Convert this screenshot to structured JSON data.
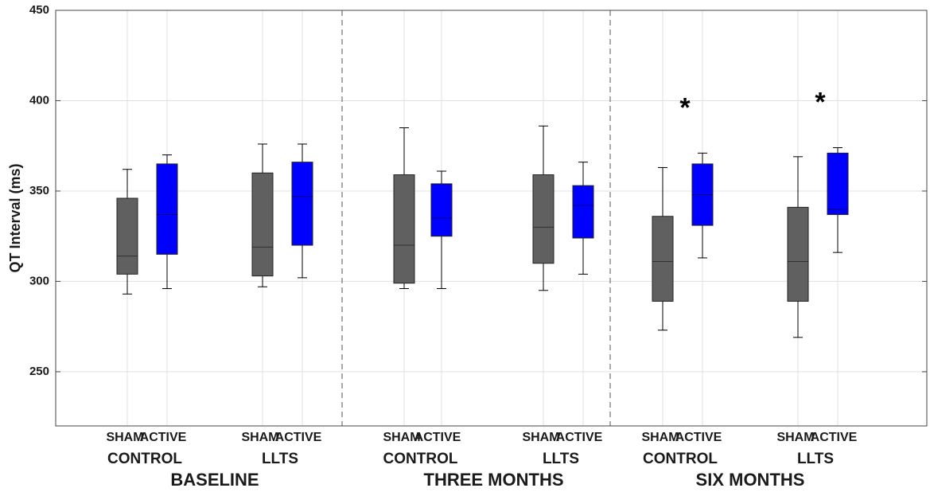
{
  "chart_data": {
    "type": "box",
    "ylabel": "QT Interval (ms)",
    "ylim": [
      220,
      450
    ],
    "yticks": [
      250,
      300,
      350,
      400,
      450
    ],
    "grid": true,
    "boxes": [
      {
        "label": "SHAM",
        "color": "#606060",
        "whislo": 293,
        "q1": 304,
        "med": 314,
        "q3": 346,
        "whishi": 362
      },
      {
        "label": "ACTIVE",
        "color": "#0000ff",
        "whislo": 296,
        "q1": 315,
        "med": 337,
        "q3": 365,
        "whishi": 370
      },
      {
        "label": "SHAM",
        "color": "#606060",
        "whislo": 297,
        "q1": 303,
        "med": 319,
        "q3": 360,
        "whishi": 376
      },
      {
        "label": "ACTIVE",
        "color": "#0000ff",
        "whislo": 302,
        "q1": 320,
        "med": 347,
        "q3": 366,
        "whishi": 376
      },
      {
        "label": "SHAM",
        "color": "#606060",
        "whislo": 296,
        "q1": 299,
        "med": 320,
        "q3": 359,
        "whishi": 385
      },
      {
        "label": "ACTIVE",
        "color": "#0000ff",
        "whislo": 296,
        "q1": 325,
        "med": 335,
        "q3": 354,
        "whishi": 361
      },
      {
        "label": "SHAM",
        "color": "#606060",
        "whislo": 295,
        "q1": 310,
        "med": 330,
        "q3": 359,
        "whishi": 386
      },
      {
        "label": "ACTIVE",
        "color": "#0000ff",
        "whislo": 304,
        "q1": 324,
        "med": 342,
        "q3": 353,
        "whishi": 366
      },
      {
        "label": "SHAM",
        "color": "#606060",
        "whislo": 273,
        "q1": 289,
        "med": 311,
        "q3": 336,
        "whishi": 363
      },
      {
        "label": "ACTIVE",
        "color": "#0000ff",
        "whislo": 313,
        "q1": 331,
        "med": 348,
        "q3": 365,
        "whishi": 371,
        "annotation": "*"
      },
      {
        "label": "SHAM",
        "color": "#606060",
        "whislo": 269,
        "q1": 289,
        "med": 311,
        "q3": 341,
        "whishi": 369
      },
      {
        "label": "ACTIVE",
        "color": "#0000ff",
        "whislo": 316,
        "q1": 337,
        "med": 340,
        "q3": 371,
        "whishi": 374,
        "annotation": "*"
      }
    ],
    "groups": [
      "CONTROL",
      "LLTS",
      "CONTROL",
      "LLTS",
      "CONTROL",
      "LLTS"
    ],
    "periods": [
      "BASELINE",
      "THREE MONTHS",
      "SIX MONTHS"
    ]
  }
}
